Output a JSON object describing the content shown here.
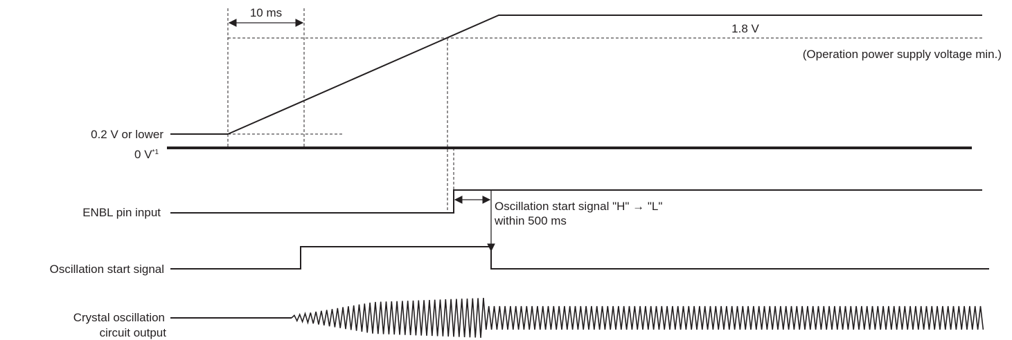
{
  "labels": {
    "interval": "10 ms",
    "min_voltage": "1.8 V",
    "min_voltage_note": "(Operation power supply voltage min.)",
    "low_level": "0.2 V or lower",
    "zero_volt": "0 V",
    "zero_volt_note": "*1",
    "enbl": "ENBL pin input",
    "osc_note_line1": "Oscillation start signal \"H\" → \"L\"",
    "osc_note_line2": "within 500 ms",
    "osc_start": "Oscillation start signal",
    "crystal_line1": "Crystal oscillation",
    "crystal_line2": "circuit output"
  },
  "colors": {
    "ink": "#231f20",
    "background": "#ffffff"
  }
}
